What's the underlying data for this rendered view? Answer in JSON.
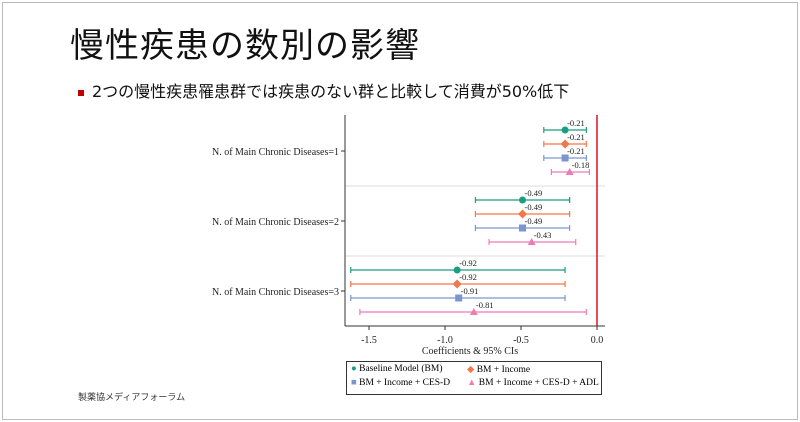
{
  "slide": {
    "title": "慢性疾患の数別の影響",
    "bullet": "2つの慢性疾患罹患群では疾患のない群と比較して消費が50%低下",
    "footer": "製薬協メディアフォーラム"
  },
  "chart_data": {
    "type": "forest",
    "xlabel": "Coefficients & 95% CIs",
    "xlim": [
      -1.65,
      0.02
    ],
    "xticks": [
      -1.5,
      -1.0,
      -0.5,
      0.0
    ],
    "xtick_labels": [
      "-1.5",
      "-1.0",
      "-0.5",
      "0.0"
    ],
    "reference_line": {
      "x": 0.0,
      "color": "#e0102a"
    },
    "categories": [
      "N. of Main Chronic Diseases=1",
      "N. of Main Chronic Diseases=2",
      "N. of Main Chronic Diseases=3"
    ],
    "legend_position": "bottom",
    "series": [
      {
        "name": "Baseline Model (BM)",
        "marker": "circle",
        "color": "#1a9e7f",
        "values": [
          -0.21,
          -0.49,
          -0.92
        ],
        "labels": [
          "-0.21",
          "-0.49",
          "-0.92"
        ],
        "ci_low": [
          -0.35,
          -0.8,
          -1.62
        ],
        "ci_high": [
          -0.07,
          -0.18,
          -0.21
        ]
      },
      {
        "name": "BM + Income",
        "marker": "diamond",
        "color": "#f2784b",
        "values": [
          -0.21,
          -0.49,
          -0.92
        ],
        "labels": [
          "-0.21",
          "-0.49",
          "-0.92"
        ],
        "ci_low": [
          -0.35,
          -0.8,
          -1.62
        ],
        "ci_high": [
          -0.07,
          -0.18,
          -0.21
        ]
      },
      {
        "name": "BM + Income + CES-D",
        "marker": "square",
        "color": "#7b96cf",
        "values": [
          -0.21,
          -0.49,
          -0.91
        ],
        "labels": [
          "-0.21",
          "-0.49",
          "-0.91"
        ],
        "ci_low": [
          -0.35,
          -0.8,
          -1.62
        ],
        "ci_high": [
          -0.07,
          -0.18,
          -0.21
        ]
      },
      {
        "name": "BM + Income + CES-D + ADL",
        "marker": "triangle",
        "color": "#ef7bb3",
        "values": [
          -0.18,
          -0.43,
          -0.81
        ],
        "labels": [
          "-0.18",
          "-0.43",
          "-0.81"
        ],
        "ci_low": [
          -0.3,
          -0.71,
          -1.56
        ],
        "ci_high": [
          -0.05,
          -0.14,
          -0.07
        ]
      }
    ]
  }
}
